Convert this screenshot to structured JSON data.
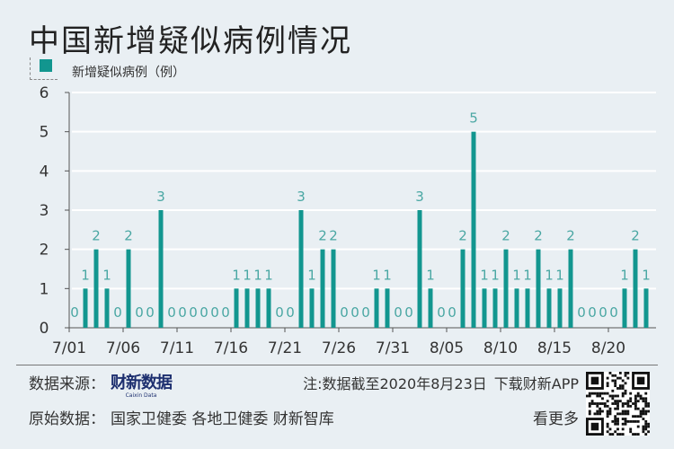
{
  "title": "中国新增疑似病例情况",
  "colors": {
    "bar": "#12968f",
    "label": "#4aa7a3",
    "background": "#e9eff3",
    "grid": "#ffffff"
  },
  "chart_data": {
    "type": "bar",
    "title": "中国新增疑似病例情况",
    "legend": [
      {
        "name": "新增疑似病例（例）",
        "color": "#12968f"
      }
    ],
    "legend_position": "top-left",
    "ylim": [
      0,
      6
    ],
    "yticks": [
      "0",
      "1",
      "2",
      "3",
      "4",
      "5",
      "6"
    ],
    "xtick_labels": [
      "7/01",
      "7/06",
      "7/11",
      "7/16",
      "7/21",
      "7/26",
      "7/31",
      "8/05",
      "8/10",
      "8/15",
      "8/20"
    ],
    "grid": true,
    "categories": [
      "7/01",
      "7/02",
      "7/03",
      "7/04",
      "7/05",
      "7/06",
      "7/07",
      "7/08",
      "7/09",
      "7/10",
      "7/11",
      "7/12",
      "7/13",
      "7/14",
      "7/15",
      "7/16",
      "7/17",
      "7/18",
      "7/19",
      "7/20",
      "7/21",
      "7/22",
      "7/23",
      "7/24",
      "7/25",
      "7/26",
      "7/27",
      "7/28",
      "7/29",
      "7/30",
      "7/31",
      "8/01",
      "8/02",
      "8/03",
      "8/04",
      "8/05",
      "8/06",
      "8/07",
      "8/08",
      "8/09",
      "8/10",
      "8/11",
      "8/12",
      "8/13",
      "8/14",
      "8/15",
      "8/16",
      "8/17",
      "8/18",
      "8/19",
      "8/20",
      "8/21",
      "8/22",
      "8/23"
    ],
    "series": [
      {
        "name": "新增疑似病例（例）",
        "values": [
          0,
          1,
          2,
          1,
          0,
          2,
          0,
          0,
          3,
          0,
          0,
          0,
          0,
          0,
          0,
          1,
          1,
          1,
          1,
          0,
          0,
          3,
          1,
          2,
          2,
          0,
          0,
          0,
          1,
          1,
          0,
          0,
          3,
          1,
          0,
          0,
          2,
          5,
          1,
          1,
          2,
          1,
          1,
          2,
          1,
          1,
          2,
          0,
          0,
          0,
          0,
          1,
          2,
          1
        ]
      }
    ],
    "data_labels": true
  },
  "footer": {
    "source_label": "数据来源：",
    "brand": "财新数据",
    "brand_sub": "Caixin Data",
    "note": "注:数据截至2020年8月23日",
    "download": "下载财新APP",
    "raw_label": "原始数据：",
    "raw_sources": "国家卫健委 各地卫健委 财新智库",
    "more": "看更多"
  },
  "qr_icon": "qr-code-icon"
}
